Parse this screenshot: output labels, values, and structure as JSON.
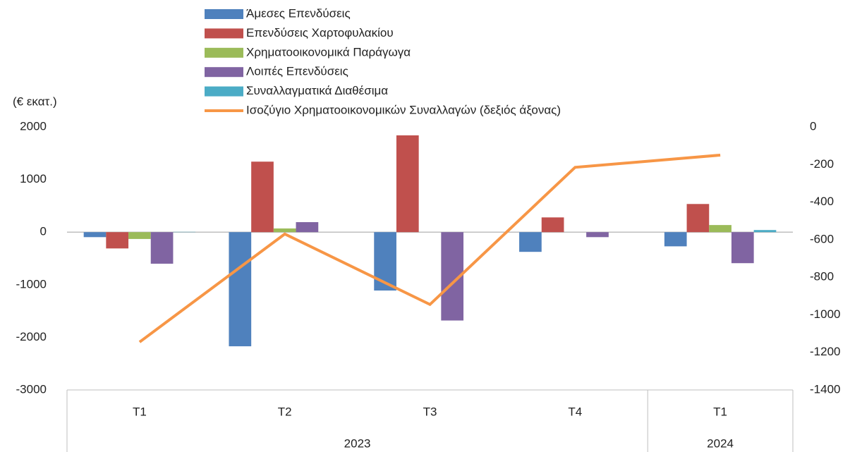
{
  "chart_data": {
    "type": "bar-line",
    "y_axis_label": "(€ εκατ.)",
    "categories": [
      "T1",
      "T2",
      "T3",
      "T4",
      "T1"
    ],
    "groups": [
      {
        "label": "2023",
        "count": 4
      },
      {
        "label": "2024",
        "count": 1
      }
    ],
    "series": [
      {
        "name": "Άμεσες Επενδύσεις",
        "type": "bar",
        "color": "#4f81bd",
        "values": [
          -95,
          -2170,
          -1110,
          -375,
          -270
        ]
      },
      {
        "name": "Επενδύσεις Χαρτοφυλακίου",
        "type": "bar",
        "color": "#c0504d",
        "values": [
          -310,
          1340,
          1840,
          280,
          535
        ]
      },
      {
        "name": "Χρηματοοικονομικά Παράγωγα",
        "type": "bar",
        "color": "#9bbb59",
        "values": [
          -130,
          70,
          0,
          0,
          135
        ]
      },
      {
        "name": "Λοιπές Επενδύσεις",
        "type": "bar",
        "color": "#8064a2",
        "values": [
          -600,
          190,
          -1680,
          -95,
          -590
        ]
      },
      {
        "name": "Συναλλαγματικά Διαθέσιμα",
        "type": "bar",
        "color": "#4bacc6",
        "values": [
          5,
          0,
          0,
          0,
          40
        ]
      },
      {
        "name": "Ισοζύγιο Χρηματοοικονομικών Συναλλαγών (δεξιός άξονας)",
        "type": "line",
        "axis": "y2",
        "color": "#f79646",
        "values": [
          -1145,
          -570,
          -945,
          -215,
          -150
        ]
      }
    ],
    "ylim": [
      -3000,
      2000
    ],
    "yticks": [
      -3000,
      -2000,
      -1000,
      0,
      1000,
      2000
    ],
    "y2lim": [
      -1400,
      0
    ],
    "y2ticks": [
      -1400,
      -1200,
      -1000,
      -800,
      -600,
      -400,
      -200,
      0
    ]
  }
}
